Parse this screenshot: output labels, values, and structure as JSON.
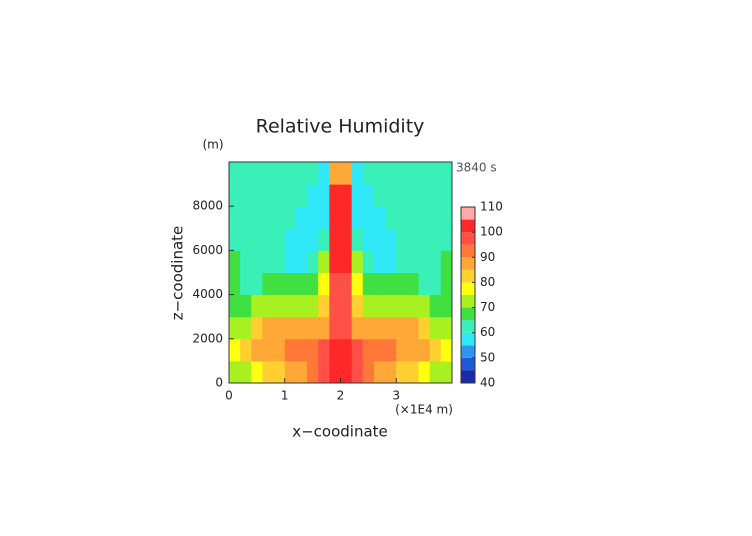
{
  "chart_data": {
    "type": "heatmap",
    "title": "Relative Humidity",
    "y_unit": "(m)",
    "time_label": "3840 s",
    "xlabel": "x−coodinate",
    "ylabel": "z−coodinate",
    "x_unit": "(×1E4 m)",
    "xlim": [
      0,
      4
    ],
    "ylim": [
      0,
      10000
    ],
    "xticks": [
      0,
      1,
      2,
      3
    ],
    "yticks": [
      0,
      2000,
      4000,
      6000,
      8000
    ],
    "x": [
      0.1,
      0.3,
      0.5,
      0.7,
      0.9,
      1.1,
      1.3,
      1.5,
      1.7,
      1.9,
      2.1,
      2.3,
      2.5,
      2.7,
      2.9,
      3.1,
      3.3,
      3.5,
      3.7,
      3.9
    ],
    "y": [
      500,
      1500,
      2500,
      3500,
      4500,
      5500,
      6500,
      7500,
      8500,
      9500
    ],
    "z": [
      [
        72,
        72,
        77,
        80,
        82,
        85,
        88,
        90,
        97,
        102,
        102,
        97,
        90,
        88,
        85,
        82,
        80,
        77,
        72,
        72
      ],
      [
        77,
        80,
        85,
        87,
        88,
        90,
        92,
        93,
        95,
        100,
        100,
        95,
        93,
        92,
        90,
        88,
        87,
        85,
        80,
        77
      ],
      [
        70,
        74,
        82,
        86,
        87,
        87,
        87,
        85,
        88,
        98,
        98,
        88,
        85,
        87,
        87,
        87,
        86,
        82,
        74,
        70
      ],
      [
        67,
        68,
        70,
        72,
        74,
        74,
        72,
        72,
        80,
        97,
        97,
        80,
        72,
        72,
        74,
        74,
        72,
        70,
        68,
        67
      ],
      [
        67,
        64,
        63,
        65,
        66,
        66,
        67,
        68,
        75,
        98,
        98,
        75,
        68,
        67,
        66,
        66,
        65,
        63,
        64,
        67
      ],
      [
        66,
        63,
        62,
        62,
        60,
        57,
        58,
        62,
        70,
        100,
        100,
        70,
        62,
        58,
        57,
        60,
        62,
        62,
        63,
        66
      ],
      [
        64,
        62,
        62,
        62,
        61,
        58,
        57,
        57,
        62,
        100,
        100,
        62,
        57,
        57,
        58,
        61,
        62,
        62,
        62,
        64
      ],
      [
        62,
        62,
        62,
        62,
        62,
        61,
        58,
        57,
        58,
        100,
        100,
        58,
        57,
        58,
        61,
        62,
        62,
        62,
        62,
        62
      ],
      [
        62,
        62,
        62,
        62,
        62,
        62,
        62,
        58,
        55,
        100,
        100,
        55,
        58,
        62,
        62,
        62,
        62,
        62,
        62,
        62
      ],
      [
        62,
        62,
        62,
        62,
        62,
        62,
        62,
        61,
        58,
        85,
        85,
        58,
        61,
        62,
        62,
        62,
        62,
        62,
        62,
        62
      ]
    ],
    "colorbar": {
      "levels": [
        40,
        45,
        50,
        55,
        60,
        65,
        70,
        75,
        80,
        85,
        90,
        95,
        100,
        105,
        110
      ],
      "colors": [
        "#1a2aa8",
        "#2058d8",
        "#2f96f0",
        "#30e8f8",
        "#38f0b8",
        "#40e040",
        "#a8f020",
        "#ffff10",
        "#ffd030",
        "#ffa838",
        "#ff7838",
        "#ff5048",
        "#ff2828",
        "#ffa8a8"
      ],
      "ticks": [
        40,
        50,
        60,
        70,
        80,
        90,
        100,
        110
      ]
    }
  }
}
